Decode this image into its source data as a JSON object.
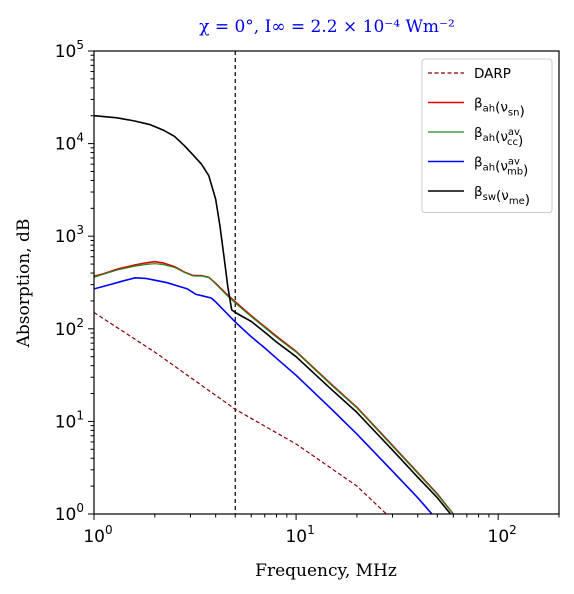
{
  "chart_data": {
    "type": "line",
    "title": "χ = 0°, I∞ = 2.2 × 10⁻⁴ Wm⁻²",
    "title_color": "#0000ee",
    "xlabel": "Frequency, MHz",
    "ylabel": "Absorption, dB",
    "x_scale": "log",
    "y_scale": "log",
    "xlim": [
      1,
      200
    ],
    "ylim": [
      1,
      100000
    ],
    "x_ticks": [
      {
        "value": 1,
        "mantissa": "10",
        "exp": "0"
      },
      {
        "value": 10,
        "mantissa": "10",
        "exp": "1"
      },
      {
        "value": 100,
        "mantissa": "10",
        "exp": "2"
      }
    ],
    "y_ticks": [
      {
        "value": 1,
        "mantissa": "10",
        "exp": "0"
      },
      {
        "value": 10,
        "mantissa": "10",
        "exp": "1"
      },
      {
        "value": 100,
        "mantissa": "10",
        "exp": "2"
      },
      {
        "value": 1000,
        "mantissa": "10",
        "exp": "3"
      },
      {
        "value": 10000,
        "mantissa": "10",
        "exp": "4"
      },
      {
        "value": 100000,
        "mantissa": "10",
        "exp": "5"
      }
    ],
    "vline": {
      "x": 5,
      "color": "#000000",
      "style": "dashed"
    },
    "legend_position": "top-right",
    "series": [
      {
        "name": "DARP",
        "label_parts": [
          [
            "DARP",
            "",
            ""
          ]
        ],
        "color": "#8b0000",
        "style": "dashed",
        "width": 1.2,
        "x": [
          1,
          2,
          5,
          10,
          20,
          28
        ],
        "y": [
          150,
          56,
          13.5,
          5.7,
          2.0,
          1.0
        ]
      },
      {
        "name": "βah(νsn)",
        "label_parts": [
          [
            "β",
            "",
            "ah"
          ],
          [
            "(ν",
            "",
            "sn"
          ],
          [
            ")",
            "",
            ""
          ]
        ],
        "color": "#e00000",
        "style": "solid",
        "width": 1.6,
        "x": [
          1,
          1.1,
          1.3,
          1.6,
          1.8,
          2.0,
          2.2,
          2.5,
          2.8,
          3.1,
          3.4,
          3.7,
          4.0,
          4.5,
          5.0,
          6.0,
          7.0,
          8.0,
          10,
          15,
          20,
          30,
          40,
          50,
          60
        ],
        "y": [
          370,
          390,
          440,
          490,
          515,
          530,
          515,
          470,
          410,
          375,
          375,
          360,
          310,
          240,
          195,
          138,
          105,
          83,
          57,
          25,
          14.2,
          5.5,
          2.8,
          1.65,
          1.0
        ]
      },
      {
        "name": "βah(νccav)",
        "label_parts": [
          [
            "β",
            "",
            "ah"
          ],
          [
            "(ν",
            "av",
            "cc"
          ],
          [
            ")",
            "",
            ""
          ]
        ],
        "color": "#228b22",
        "style": "solid",
        "width": 1.2,
        "x": [
          1,
          1.1,
          1.3,
          1.6,
          1.8,
          2.0,
          2.2,
          2.5,
          2.8,
          3.1,
          3.4,
          3.7,
          4.0,
          4.5,
          5.0,
          6.0,
          7.0,
          8.0,
          10,
          15,
          20,
          30,
          40,
          50,
          60
        ],
        "y": [
          360,
          385,
          430,
          475,
          495,
          505,
          495,
          460,
          405,
          372,
          372,
          358,
          305,
          235,
          190,
          135,
          103,
          81,
          56,
          24.5,
          14.0,
          5.4,
          2.75,
          1.62,
          1.0
        ]
      },
      {
        "name": "βah(νmbav)",
        "label_parts": [
          [
            "β",
            "",
            "ah"
          ],
          [
            "(ν",
            "av",
            "mb"
          ],
          [
            ")",
            "",
            ""
          ]
        ],
        "color": "#0000ff",
        "style": "solid",
        "width": 1.6,
        "x": [
          1,
          1.2,
          1.4,
          1.6,
          1.8,
          2.0,
          2.3,
          2.6,
          2.9,
          3.2,
          3.5,
          3.8,
          4.0,
          4.5,
          5.0,
          6.0,
          7.0,
          8.0,
          10,
          15,
          20,
          30,
          40,
          47
        ],
        "y": [
          270,
          300,
          330,
          355,
          350,
          335,
          315,
          290,
          270,
          235,
          225,
          215,
          195,
          150,
          118,
          82,
          62,
          48,
          31.5,
          13.5,
          7.3,
          2.9,
          1.5,
          1.0
        ]
      },
      {
        "name": "βsw(νme)",
        "label_parts": [
          [
            "β",
            "",
            "sw"
          ],
          [
            "(ν",
            "",
            "me"
          ],
          [
            ")",
            "",
            ""
          ]
        ],
        "color": "#000000",
        "style": "solid",
        "width": 1.6,
        "x": [
          1,
          1.3,
          1.6,
          1.9,
          2.2,
          2.5,
          2.8,
          3.1,
          3.4,
          3.7,
          4.0,
          4.2,
          4.4,
          4.6,
          4.8,
          5.0,
          6.0,
          7.0,
          8.0,
          10,
          15,
          20,
          30,
          40,
          50,
          60
        ],
        "y": [
          20000,
          19000,
          17500,
          16000,
          14000,
          12000,
          9500,
          7500,
          6000,
          4500,
          2500,
          1300,
          600,
          280,
          160,
          150,
          120,
          92,
          72,
          50,
          22,
          12.5,
          4.9,
          2.5,
          1.5,
          0.92
        ]
      }
    ]
  }
}
